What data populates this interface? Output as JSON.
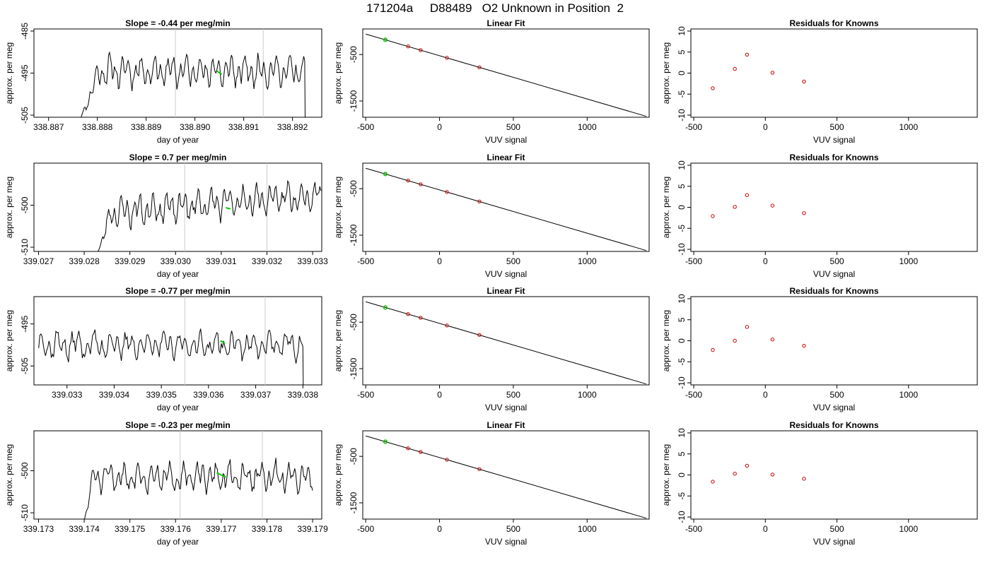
{
  "page": {
    "title": "171204a     D88489   O2 Unknown in Position  2"
  },
  "colors": {
    "trace": "#000000",
    "marker_line": "#cccccc",
    "highlight": "#00cc00",
    "known_points": "#cc0000",
    "fit_line": "#000000"
  },
  "chart_data": [
    {
      "type": "line",
      "row": 0,
      "col": 0,
      "title": "Slope =  -0.44  per meg/min",
      "xlabel": "day of year",
      "ylabel": "approx. per meg",
      "xlim": [
        338.8867,
        338.8926
      ],
      "ylim": [
        -505.5,
        -484.5
      ],
      "xticks": [
        338.887,
        338.888,
        338.889,
        338.89,
        338.891,
        338.892
      ],
      "xtick_labels": [
        "338.887",
        "338.888",
        "338.889",
        "338.890",
        "338.891",
        "338.892"
      ],
      "yticks": [
        -485,
        -495,
        -505
      ],
      "ytick_labels": [
        "-485",
        "-495",
        "-505"
      ],
      "vlines": [
        338.8896,
        338.8914
      ],
      "x_start": 338.88765,
      "x_end": 338.89225,
      "baseline": -494.5,
      "amplitude": 2.2,
      "noise": 1.1,
      "trend": 0.0,
      "rise_from": -506,
      "rise_len": 0.0004,
      "seed": 11,
      "end_drop": true,
      "highlight_x": [
        338.89045,
        338.89055
      ],
      "highlight_y": [
        -494.5,
        -495.3
      ]
    },
    {
      "type": "scatter",
      "row": 0,
      "col": 1,
      "title": "Linear Fit",
      "xlabel": "VUV signal",
      "ylabel": "approx. per meg",
      "xlim": [
        -520,
        1420
      ],
      "ylim": [
        -1850,
        50
      ],
      "xticks": [
        -500,
        0,
        500,
        1000
      ],
      "xtick_labels": [
        "-500",
        "0",
        "500",
        "1000"
      ],
      "yticks": [
        -500,
        -1500
      ],
      "ytick_labels": [
        "-500",
        "-1500"
      ],
      "line": {
        "x": [
          -500,
          1400
        ],
        "y": [
          -60,
          -1830
        ]
      },
      "points": {
        "x": [
          -367,
          -213,
          -128,
          50,
          270
        ],
        "y": [
          -184,
          -326,
          -405,
          -571,
          -775
        ]
      },
      "highlight_point": {
        "x": -367,
        "y": -184
      }
    },
    {
      "type": "scatter",
      "row": 0,
      "col": 2,
      "title": "Residuals for Knowns",
      "xlabel": "VUV signal",
      "ylabel": "approx. per meg",
      "xlim": [
        -520,
        1480
      ],
      "ylim": [
        -10.5,
        10.5
      ],
      "xticks": [
        -500,
        0,
        500,
        1000
      ],
      "xtick_labels": [
        "-500",
        "0",
        "500",
        "1000"
      ],
      "yticks": [
        10,
        5,
        0,
        -5,
        -10
      ],
      "ytick_labels": [
        "10",
        "5",
        "0",
        "-5",
        "-10"
      ],
      "points": {
        "x": [
          -367,
          -213,
          -128,
          50,
          270
        ],
        "y": [
          -3.6,
          1.0,
          4.4,
          0.1,
          -2.0
        ]
      }
    },
    {
      "type": "line",
      "row": 1,
      "col": 0,
      "title": "Slope =  0.7  per meg/min",
      "xlabel": "day of year",
      "ylabel": "approx. per meg",
      "xlim": [
        339.0269,
        339.0332
      ],
      "ylim": [
        -511,
        -490
      ],
      "xticks": [
        339.027,
        339.028,
        339.029,
        339.03,
        339.031,
        339.032,
        339.033
      ],
      "xtick_labels": [
        "339.027",
        "339.028",
        "339.029",
        "339.030",
        "339.031",
        "339.032",
        "339.033"
      ],
      "yticks": [
        -500,
        -510
      ],
      "ytick_labels": [
        "-500",
        "-510"
      ],
      "vlines": [
        339.0302,
        339.032
      ],
      "x_start": 339.0283,
      "x_end": 339.0332,
      "baseline": -502.0,
      "amplitude": 2.2,
      "noise": 1.1,
      "trend": 4.5,
      "rise_from": -511,
      "rise_len": 0.0003,
      "seed": 23,
      "end_drop": false,
      "highlight_x": [
        339.0311,
        339.0312
      ],
      "highlight_y": [
        -500.6,
        -500.9
      ]
    },
    {
      "type": "scatter",
      "row": 1,
      "col": 1,
      "title": "Linear Fit",
      "xlabel": "VUV signal",
      "ylabel": "approx. per meg",
      "xlim": [
        -520,
        1420
      ],
      "ylim": [
        -1850,
        50
      ],
      "xticks": [
        -500,
        0,
        500,
        1000
      ],
      "xtick_labels": [
        "-500",
        "0",
        "500",
        "1000"
      ],
      "yticks": [
        -500,
        -1500
      ],
      "ytick_labels": [
        "-500",
        "-1500"
      ],
      "line": {
        "x": [
          -500,
          1400
        ],
        "y": [
          -60,
          -1830
        ]
      },
      "points": {
        "x": [
          -367,
          -213,
          -128,
          50,
          270
        ],
        "y": [
          -184,
          -326,
          -405,
          -571,
          -775
        ]
      },
      "highlight_point": {
        "x": -367,
        "y": -184
      }
    },
    {
      "type": "scatter",
      "row": 1,
      "col": 2,
      "title": "Residuals for Knowns",
      "xlabel": "VUV signal",
      "ylabel": "approx. per meg",
      "xlim": [
        -520,
        1480
      ],
      "ylim": [
        -10.5,
        10.5
      ],
      "xticks": [
        -500,
        0,
        500,
        1000
      ],
      "xtick_labels": [
        "-500",
        "0",
        "500",
        "1000"
      ],
      "yticks": [
        10,
        5,
        0,
        -5,
        -10
      ],
      "ytick_labels": [
        "10",
        "5",
        "0",
        "-5",
        "-10"
      ],
      "points": {
        "x": [
          -367,
          -213,
          -128,
          50,
          270
        ],
        "y": [
          -2.1,
          0.1,
          2.9,
          0.4,
          -1.4
        ]
      }
    },
    {
      "type": "line",
      "row": 2,
      "col": 0,
      "title": "Slope =  -0.77  per meg/min",
      "xlabel": "day of year",
      "ylabel": "approx. per meg",
      "xlim": [
        339.0323,
        339.0384
      ],
      "ylim": [
        -509.5,
        -488.5
      ],
      "xticks": [
        339.033,
        339.034,
        339.035,
        339.036,
        339.037,
        339.038
      ],
      "xtick_labels": [
        "339.033",
        "339.034",
        "339.035",
        "339.036",
        "339.037",
        "339.038"
      ],
      "yticks": [
        -495,
        -505
      ],
      "ytick_labels": [
        "-495",
        "-505"
      ],
      "vlines": [
        339.0355,
        339.0372
      ],
      "x_start": 339.0324,
      "x_end": 339.038,
      "baseline": -500.0,
      "amplitude": 2.0,
      "noise": 1.2,
      "trend": 0.0,
      "rise_from": null,
      "rise_len": 0,
      "seed": 37,
      "end_drop": true,
      "highlight_x": [
        339.03625,
        339.03635
      ],
      "highlight_y": [
        -499.0,
        -499.6
      ]
    },
    {
      "type": "scatter",
      "row": 2,
      "col": 1,
      "title": "Linear Fit",
      "xlabel": "VUV signal",
      "ylabel": "approx. per meg",
      "xlim": [
        -520,
        1420
      ],
      "ylim": [
        -1850,
        50
      ],
      "xticks": [
        -500,
        0,
        500,
        1000
      ],
      "xtick_labels": [
        "-500",
        "0",
        "500",
        "1000"
      ],
      "yticks": [
        -500,
        -1500
      ],
      "ytick_labels": [
        "-500",
        "-1500"
      ],
      "line": {
        "x": [
          -500,
          1400
        ],
        "y": [
          -60,
          -1830
        ]
      },
      "points": {
        "x": [
          -367,
          -213,
          -128,
          50,
          270
        ],
        "y": [
          -184,
          -326,
          -405,
          -571,
          -775
        ]
      },
      "highlight_point": {
        "x": -367,
        "y": -184
      }
    },
    {
      "type": "scatter",
      "row": 2,
      "col": 2,
      "title": "Residuals for Knowns",
      "xlabel": "VUV signal",
      "ylabel": "approx. per meg",
      "xlim": [
        -520,
        1480
      ],
      "ylim": [
        -10.5,
        10.5
      ],
      "xticks": [
        -500,
        0,
        500,
        1000
      ],
      "xtick_labels": [
        "-500",
        "0",
        "500",
        "1000"
      ],
      "yticks": [
        10,
        5,
        0,
        -5,
        -10
      ],
      "ytick_labels": [
        "10",
        "5",
        "0",
        "-5",
        "-10"
      ],
      "points": {
        "x": [
          -367,
          -213,
          -128,
          50,
          270
        ],
        "y": [
          -2.2,
          0.0,
          3.3,
          0.3,
          -1.2
        ]
      }
    },
    {
      "type": "line",
      "row": 3,
      "col": 0,
      "title": "Slope =  -0.23  per meg/min",
      "xlabel": "day of year",
      "ylabel": "approx. per meg",
      "xlim": [
        339.1729,
        339.1792
      ],
      "ylim": [
        -511.5,
        -490.5
      ],
      "xticks": [
        339.173,
        339.174,
        339.175,
        339.176,
        339.177,
        339.178,
        339.179
      ],
      "xtick_labels": [
        "339.173",
        "339.174",
        "339.175",
        "339.176",
        "339.177",
        "339.178",
        "339.179"
      ],
      "yticks": [
        -500,
        -510
      ],
      "ytick_labels": [
        "-500",
        "-510"
      ],
      "vlines": [
        339.1761,
        339.1779
      ],
      "x_start": 339.174,
      "x_end": 339.179,
      "baseline": -501.5,
      "amplitude": 2.0,
      "noise": 1.1,
      "trend": 0.0,
      "rise_from": -512,
      "rise_len": 0.0002,
      "seed": 51,
      "end_drop": false,
      "highlight_x": [
        339.1769,
        339.1771
      ],
      "highlight_y": [
        -500.5,
        -501.5
      ]
    },
    {
      "type": "scatter",
      "row": 3,
      "col": 1,
      "title": "Linear Fit",
      "xlabel": "VUV signal",
      "ylabel": "approx. per meg",
      "xlim": [
        -520,
        1420
      ],
      "ylim": [
        -1850,
        50
      ],
      "xticks": [
        -500,
        0,
        500,
        1000
      ],
      "xtick_labels": [
        "-500",
        "0",
        "500",
        "1000"
      ],
      "yticks": [
        -500,
        -1500
      ],
      "ytick_labels": [
        "-500",
        "-1500"
      ],
      "line": {
        "x": [
          -500,
          1400
        ],
        "y": [
          -60,
          -1830
        ]
      },
      "points": {
        "x": [
          -367,
          -213,
          -128,
          50,
          270
        ],
        "y": [
          -184,
          -326,
          -405,
          -571,
          -775
        ]
      },
      "highlight_point": {
        "x": -367,
        "y": -184
      }
    },
    {
      "type": "scatter",
      "row": 3,
      "col": 2,
      "title": "Residuals for Knowns",
      "xlabel": "VUV signal",
      "ylabel": "approx. per meg",
      "xlim": [
        -520,
        1480
      ],
      "ylim": [
        -10.5,
        10.5
      ],
      "xticks": [
        -500,
        0,
        500,
        1000
      ],
      "xtick_labels": [
        "-500",
        "0",
        "500",
        "1000"
      ],
      "yticks": [
        10,
        5,
        0,
        -5,
        -10
      ],
      "ytick_labels": [
        "10",
        "5",
        "0",
        "-5",
        "-10"
      ],
      "points": {
        "x": [
          -367,
          -213,
          -128,
          50,
          270
        ],
        "y": [
          -1.6,
          0.3,
          2.2,
          0.1,
          -0.9
        ]
      }
    }
  ]
}
